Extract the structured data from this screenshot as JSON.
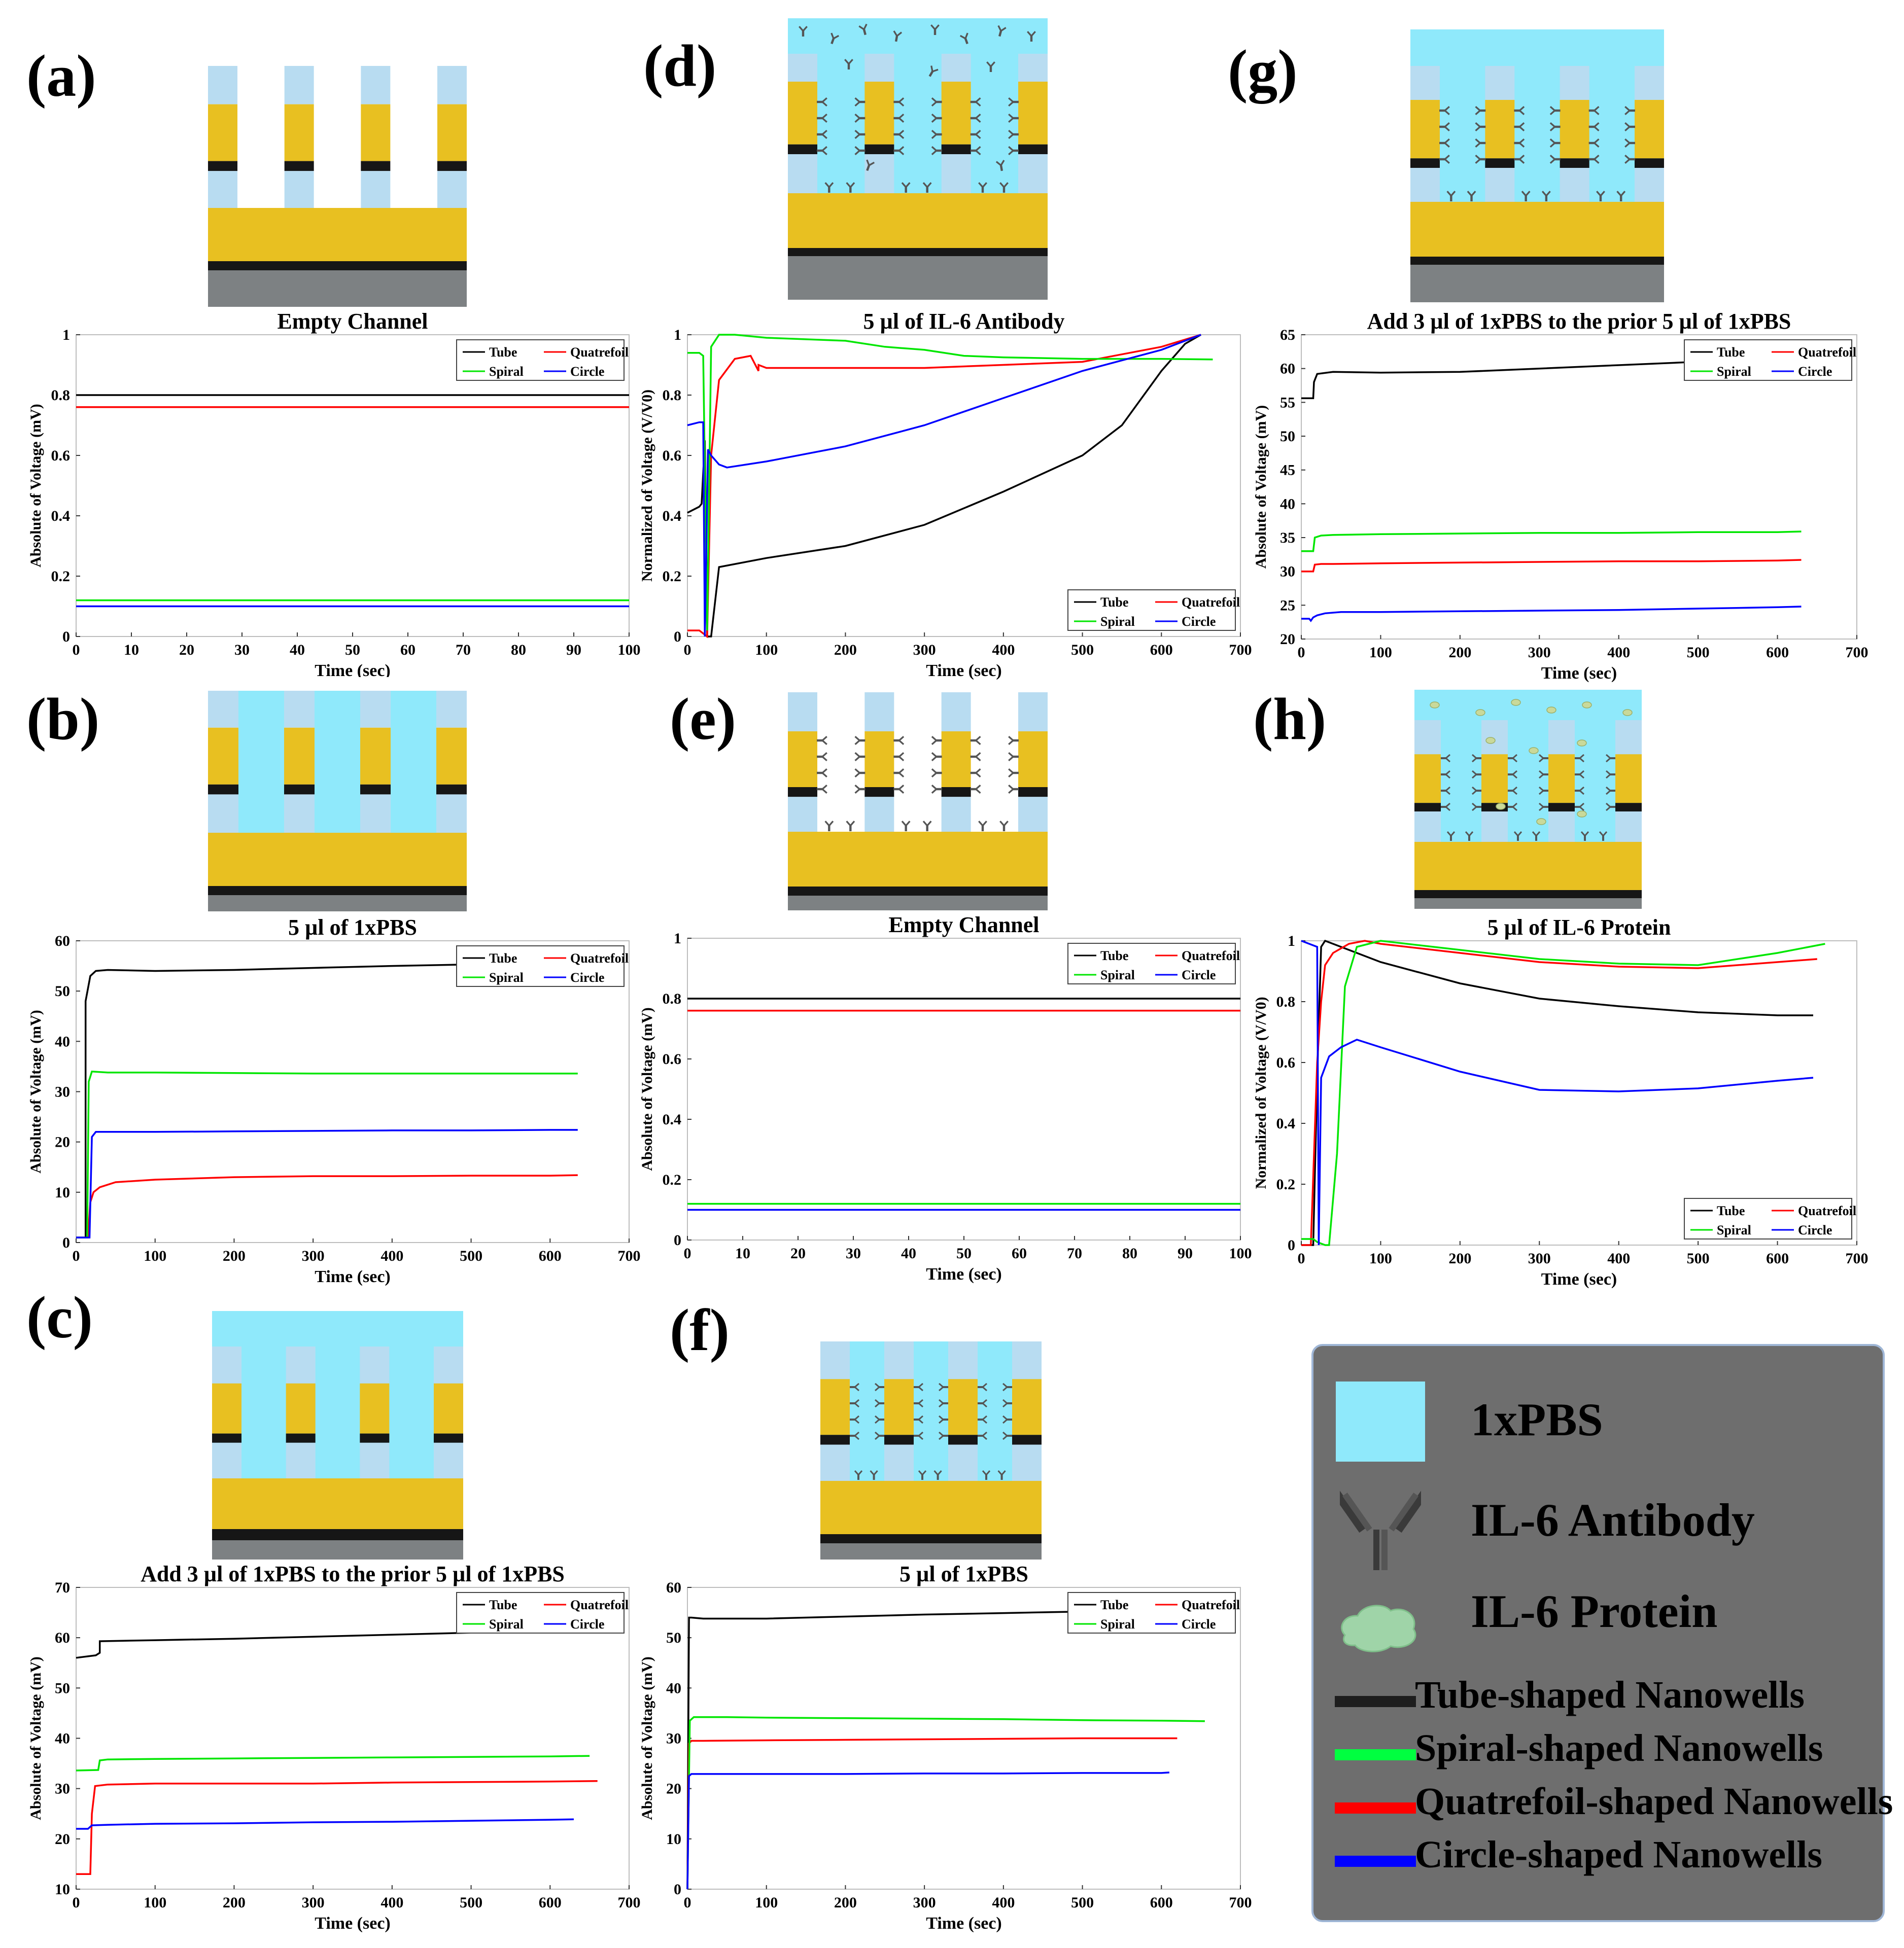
{
  "labels": [
    "(a)",
    "(b)",
    "(c)",
    "(d)",
    "(e)",
    "(f)",
    "(g)",
    "(h)"
  ],
  "colors": {
    "Tube": "#000000",
    "Quatrefoil": "#ff0000",
    "Spiral": "#00e600",
    "Circle": "#0000ff",
    "pbs": "#8fe9fb",
    "gold": "#e8c021",
    "black": "#161616",
    "gray": "#7d8183",
    "lightblue": "#b8dcf1",
    "legend_bg": "#6e6e6e"
  },
  "legend_panel": {
    "items": [
      "1xPBS",
      "IL-6 Antibody",
      "IL-6 Protein"
    ],
    "lines": [
      "Tube-shaped Nanowells",
      "Spiral-shaped Nanowells",
      "Quatrefoil-shaped Nanowells",
      "Circle-shaped Nanowells"
    ]
  },
  "chart_data": [
    {
      "id": "a",
      "type": "line",
      "title": "Empty Channel",
      "xlabel": "Time (sec)",
      "ylabel": "Absolute of Voltage (mV)",
      "xlim": [
        0,
        100
      ],
      "ylim": [
        0,
        1
      ],
      "xticks": [
        0,
        10,
        20,
        30,
        40,
        50,
        60,
        70,
        80,
        90,
        100
      ],
      "yticks": [
        0,
        0.2,
        0.4,
        0.6,
        0.8,
        1
      ],
      "legend": "top-right",
      "series": [
        {
          "name": "Tube",
          "x": [
            0,
            100
          ],
          "y": [
            0.8,
            0.8
          ]
        },
        {
          "name": "Quatrefoil",
          "x": [
            0,
            100
          ],
          "y": [
            0.76,
            0.76
          ]
        },
        {
          "name": "Spiral",
          "x": [
            0,
            100
          ],
          "y": [
            0.12,
            0.12
          ]
        },
        {
          "name": "Circle",
          "x": [
            0,
            100
          ],
          "y": [
            0.1,
            0.1
          ]
        }
      ]
    },
    {
      "id": "b",
      "type": "line",
      "title": "5 µl of 1xPBS",
      "xlabel": "Time (sec)",
      "ylabel": "Absolute of Voltage (mV)",
      "xlim": [
        0,
        700
      ],
      "ylim": [
        0,
        60
      ],
      "xticks": [
        0,
        100,
        200,
        300,
        400,
        500,
        600,
        700
      ],
      "yticks": [
        0,
        10,
        20,
        30,
        40,
        50,
        60
      ],
      "legend": "top-right",
      "series": [
        {
          "name": "Tube",
          "x": [
            0,
            12,
            12,
            18,
            25,
            40,
            100,
            200,
            300,
            400,
            500,
            600,
            620
          ],
          "y": [
            1,
            1,
            48,
            53,
            54,
            54.2,
            54,
            54.2,
            54.6,
            55,
            55.3,
            55.8,
            56
          ]
        },
        {
          "name": "Quatrefoil",
          "x": [
            0,
            15,
            18,
            22,
            30,
            50,
            100,
            200,
            300,
            400,
            500,
            600,
            635
          ],
          "y": [
            1,
            1,
            8,
            10,
            11,
            12,
            12.5,
            13,
            13.2,
            13.2,
            13.3,
            13.3,
            13.4
          ]
        },
        {
          "name": "Spiral",
          "x": [
            0,
            14,
            16,
            20,
            40,
            100,
            200,
            300,
            400,
            500,
            600,
            635
          ],
          "y": [
            1,
            1,
            32,
            34,
            33.8,
            33.8,
            33.7,
            33.6,
            33.6,
            33.6,
            33.6,
            33.6
          ]
        },
        {
          "name": "Circle",
          "x": [
            0,
            17,
            20,
            25,
            40,
            100,
            200,
            300,
            400,
            500,
            600,
            635
          ],
          "y": [
            1,
            1,
            21,
            22,
            22,
            22,
            22.1,
            22.2,
            22.3,
            22.3,
            22.4,
            22.4
          ]
        }
      ]
    },
    {
      "id": "c",
      "type": "line",
      "title": "Add 3 µl of 1xPBS to the prior 5 µl of 1xPBS",
      "xlabel": "Time (sec)",
      "ylabel": "Absolute of Voltage (mV)",
      "xlim": [
        0,
        700
      ],
      "ylim": [
        10,
        70
      ],
      "xticks": [
        0,
        100,
        200,
        300,
        400,
        500,
        600,
        700
      ],
      "yticks": [
        10,
        20,
        30,
        40,
        50,
        60,
        70
      ],
      "legend": "top-right",
      "series": [
        {
          "name": "Tube",
          "x": [
            0,
            25,
            30,
            30,
            100,
            200,
            300,
            400,
            500,
            600,
            640
          ],
          "y": [
            56,
            56.5,
            57,
            59.3,
            59.5,
            59.8,
            60.2,
            60.6,
            61,
            61.4,
            61.6
          ]
        },
        {
          "name": "Quatrefoil",
          "x": [
            0,
            18,
            20,
            24,
            40,
            100,
            200,
            300,
            400,
            500,
            600,
            660
          ],
          "y": [
            13,
            13,
            25,
            30.5,
            30.8,
            31,
            31,
            31,
            31.2,
            31.3,
            31.4,
            31.5
          ]
        },
        {
          "name": "Spiral",
          "x": [
            0,
            28,
            30,
            40,
            100,
            200,
            300,
            400,
            500,
            600,
            650
          ],
          "y": [
            33.6,
            33.7,
            35.6,
            35.8,
            35.9,
            36,
            36.1,
            36.2,
            36.3,
            36.4,
            36.5
          ]
        },
        {
          "name": "Circle",
          "x": [
            0,
            15,
            20,
            40,
            100,
            200,
            300,
            400,
            500,
            600,
            630
          ],
          "y": [
            22,
            22,
            22.7,
            22.8,
            23,
            23.1,
            23.3,
            23.4,
            23.6,
            23.8,
            23.9
          ]
        }
      ]
    },
    {
      "id": "d",
      "type": "line",
      "title": "5 µl of IL-6 Antibody",
      "xlabel": "Time (sec)",
      "ylabel": "Normalized of Voltage (V/V0)",
      "xlim": [
        0,
        700
      ],
      "ylim": [
        0,
        1
      ],
      "xticks": [
        0,
        100,
        200,
        300,
        400,
        500,
        600,
        700
      ],
      "yticks": [
        0,
        0.2,
        0.4,
        0.6,
        0.8,
        1
      ],
      "legend": "bottom-right",
      "series": [
        {
          "name": "Tube",
          "x": [
            0,
            15,
            18,
            22,
            25,
            30,
            40,
            100,
            200,
            300,
            400,
            500,
            550,
            600,
            630,
            650
          ],
          "y": [
            0.41,
            0.43,
            0.44,
            0.65,
            0.0,
            0.0,
            0.23,
            0.26,
            0.3,
            0.37,
            0.48,
            0.6,
            0.7,
            0.88,
            0.97,
            1.0
          ]
        },
        {
          "name": "Quatrefoil",
          "x": [
            0,
            15,
            20,
            25,
            30,
            40,
            60,
            80,
            90,
            90,
            100,
            200,
            300,
            400,
            500,
            600,
            650
          ],
          "y": [
            0.02,
            0.02,
            0.01,
            0.0,
            0.6,
            0.85,
            0.92,
            0.93,
            0.88,
            0.9,
            0.89,
            0.89,
            0.89,
            0.9,
            0.91,
            0.96,
            1.0
          ]
        },
        {
          "name": "Spiral",
          "x": [
            0,
            15,
            20,
            25,
            30,
            40,
            60,
            100,
            200,
            250,
            300,
            350,
            400,
            500,
            600,
            665
          ],
          "y": [
            0.94,
            0.94,
            0.93,
            0.02,
            0.96,
            1.0,
            1.0,
            0.99,
            0.98,
            0.96,
            0.95,
            0.93,
            0.925,
            0.92,
            0.92,
            0.918
          ]
        },
        {
          "name": "Circle",
          "x": [
            0,
            15,
            20,
            22,
            26,
            30,
            40,
            50,
            100,
            200,
            300,
            400,
            500,
            600,
            650
          ],
          "y": [
            0.7,
            0.71,
            0.71,
            0.0,
            0.62,
            0.6,
            0.57,
            0.56,
            0.58,
            0.63,
            0.7,
            0.79,
            0.88,
            0.95,
            1.0
          ]
        }
      ]
    },
    {
      "id": "e",
      "type": "line",
      "title": "Empty Channel",
      "xlabel": "Time (sec)",
      "ylabel": "Absolute of Voltage (mV)",
      "xlim": [
        0,
        100
      ],
      "ylim": [
        0,
        1
      ],
      "xticks": [
        0,
        10,
        20,
        30,
        40,
        50,
        60,
        70,
        80,
        90,
        100
      ],
      "yticks": [
        0,
        0.2,
        0.4,
        0.6,
        0.8,
        1
      ],
      "legend": "top-right",
      "series": [
        {
          "name": "Tube",
          "x": [
            0,
            100
          ],
          "y": [
            0.8,
            0.8
          ]
        },
        {
          "name": "Quatrefoil",
          "x": [
            0,
            100
          ],
          "y": [
            0.76,
            0.76
          ]
        },
        {
          "name": "Spiral",
          "x": [
            0,
            100
          ],
          "y": [
            0.12,
            0.12
          ]
        },
        {
          "name": "Circle",
          "x": [
            0,
            100
          ],
          "y": [
            0.1,
            0.1
          ]
        }
      ]
    },
    {
      "id": "f",
      "type": "line",
      "title": "5 µl of 1xPBS",
      "xlabel": "Time (sec)",
      "ylabel": "Absolute of Voltage (mV)",
      "xlim": [
        0,
        700
      ],
      "ylim": [
        0,
        60
      ],
      "xticks": [
        0,
        100,
        200,
        300,
        400,
        500,
        600,
        700
      ],
      "yticks": [
        0,
        10,
        20,
        30,
        40,
        50,
        60
      ],
      "legend": "top-right",
      "series": [
        {
          "name": "Tube",
          "x": [
            0,
            2,
            5,
            20,
            100,
            200,
            300,
            400,
            500,
            600,
            615
          ],
          "y": [
            0,
            54,
            54,
            53.8,
            53.8,
            54.2,
            54.6,
            54.9,
            55.2,
            55.6,
            55.7
          ]
        },
        {
          "name": "Quatrefoil",
          "x": [
            0,
            2,
            5,
            20,
            100,
            200,
            300,
            400,
            500,
            600,
            620
          ],
          "y": [
            0,
            29,
            29.5,
            29.5,
            29.6,
            29.7,
            29.8,
            29.9,
            30,
            30,
            30
          ]
        },
        {
          "name": "Spiral",
          "x": [
            0,
            3,
            8,
            50,
            100,
            200,
            300,
            400,
            500,
            600,
            655
          ],
          "y": [
            0,
            33.5,
            34.2,
            34.2,
            34.1,
            34,
            33.9,
            33.8,
            33.6,
            33.5,
            33.4
          ]
        },
        {
          "name": "Circle",
          "x": [
            0,
            2,
            5,
            20,
            100,
            200,
            300,
            400,
            500,
            600,
            610
          ],
          "y": [
            0,
            22.5,
            22.9,
            22.9,
            22.9,
            22.9,
            23,
            23,
            23.1,
            23.1,
            23.2
          ]
        }
      ]
    },
    {
      "id": "g",
      "type": "line",
      "title": "Add 3 µl of 1xPBS to the prior 5 µl of 1xPBS",
      "xlabel": "Time (sec)",
      "ylabel": "Absolute of Voltage (mV)",
      "xlim": [
        0,
        700
      ],
      "ylim": [
        20,
        65
      ],
      "xticks": [
        0,
        100,
        200,
        300,
        400,
        500,
        600,
        700
      ],
      "yticks": [
        20,
        25,
        30,
        35,
        40,
        45,
        50,
        55,
        60,
        65
      ],
      "legend": "top-right",
      "series": [
        {
          "name": "Tube",
          "x": [
            0,
            15,
            16,
            20,
            40,
            100,
            200,
            300,
            400,
            500,
            600,
            630
          ],
          "y": [
            55.6,
            55.6,
            58,
            59.2,
            59.5,
            59.4,
            59.5,
            60,
            60.5,
            61,
            61.4,
            61.6
          ]
        },
        {
          "name": "Quatrefoil",
          "x": [
            0,
            15,
            17,
            25,
            40,
            100,
            200,
            300,
            400,
            500,
            600,
            630
          ],
          "y": [
            30,
            30,
            31,
            31.1,
            31.1,
            31.2,
            31.3,
            31.4,
            31.5,
            31.5,
            31.6,
            31.7
          ]
        },
        {
          "name": "Spiral",
          "x": [
            0,
            15,
            17,
            25,
            40,
            100,
            200,
            300,
            400,
            500,
            600,
            630
          ],
          "y": [
            33,
            33,
            35,
            35.3,
            35.4,
            35.5,
            35.6,
            35.7,
            35.7,
            35.8,
            35.8,
            35.9
          ]
        },
        {
          "name": "Circle",
          "x": [
            0,
            10,
            12,
            15,
            20,
            30,
            50,
            100,
            200,
            300,
            400,
            500,
            600,
            630
          ],
          "y": [
            23,
            23,
            22.7,
            23.2,
            23.5,
            23.8,
            24,
            24,
            24.1,
            24.2,
            24.3,
            24.5,
            24.7,
            24.8
          ]
        }
      ]
    },
    {
      "id": "h",
      "type": "line",
      "title": "5 µl of IL-6 Protein",
      "xlabel": "Time (sec)",
      "ylabel": "Normalized of Voltage (V/V0)",
      "xlim": [
        0,
        700
      ],
      "ylim": [
        0,
        1
      ],
      "xticks": [
        0,
        100,
        200,
        300,
        400,
        500,
        600,
        700
      ],
      "yticks": [
        0,
        0.2,
        0.4,
        0.6,
        0.8,
        1
      ],
      "legend": "bottom-right",
      "series": [
        {
          "name": "Tube",
          "x": [
            0,
            15,
            20,
            25,
            30,
            40,
            100,
            200,
            300,
            400,
            500,
            600,
            645
          ],
          "y": [
            0.0,
            0.0,
            0.55,
            0.98,
            1.0,
            0.99,
            0.93,
            0.86,
            0.81,
            0.785,
            0.765,
            0.755,
            0.755
          ]
        },
        {
          "name": "Quatrefoil",
          "x": [
            0,
            12,
            20,
            25,
            30,
            40,
            60,
            80,
            100,
            200,
            300,
            400,
            500,
            600,
            650
          ],
          "y": [
            0.0,
            0.0,
            0.6,
            0.8,
            0.92,
            0.96,
            0.99,
            1.0,
            0.99,
            0.96,
            0.93,
            0.915,
            0.91,
            0.93,
            0.94
          ]
        },
        {
          "name": "Spiral",
          "x": [
            0,
            15,
            20,
            30,
            35,
            45,
            55,
            70,
            100,
            200,
            300,
            400,
            500,
            600,
            660
          ],
          "y": [
            0.02,
            0.02,
            0.01,
            0.0,
            0.0,
            0.3,
            0.85,
            0.98,
            1.0,
            0.97,
            0.94,
            0.925,
            0.92,
            0.96,
            0.99
          ]
        },
        {
          "name": "Circle",
          "x": [
            0,
            10,
            20,
            22,
            25,
            35,
            50,
            70,
            100,
            200,
            300,
            400,
            500,
            600,
            645
          ],
          "y": [
            1.0,
            0.99,
            0.98,
            0.0,
            0.55,
            0.62,
            0.65,
            0.675,
            0.65,
            0.57,
            0.51,
            0.505,
            0.515,
            0.54,
            0.55
          ]
        }
      ]
    }
  ]
}
